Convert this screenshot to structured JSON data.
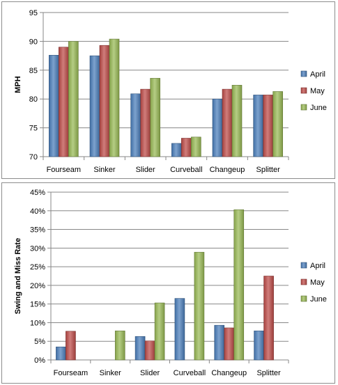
{
  "colors": {
    "April": "#4a7ebb",
    "May": "#be4b48",
    "June": "#98b954",
    "grid": "#878787",
    "axis": "#878787"
  },
  "chart_data": [
    {
      "type": "bar",
      "categories": [
        "Fourseam",
        "Sinker",
        "Slider",
        "Curveball",
        "Changeup",
        "Splitter"
      ],
      "series": [
        {
          "name": "April",
          "values": [
            87.6,
            87.5,
            80.9,
            72.3,
            80.0,
            80.7
          ]
        },
        {
          "name": "May",
          "values": [
            89.0,
            89.3,
            81.7,
            73.2,
            81.7,
            80.7
          ]
        },
        {
          "name": "June",
          "values": [
            90.0,
            90.4,
            83.6,
            73.4,
            82.4,
            81.3
          ]
        }
      ],
      "title": "",
      "xlabel": "",
      "ylabel": "MPH",
      "ylim": [
        70,
        95
      ],
      "yticks": [
        70,
        75,
        80,
        85,
        90,
        95
      ],
      "ytick_labels": [
        "70",
        "75",
        "80",
        "85",
        "90",
        "95"
      ],
      "grid": true,
      "legend": "right"
    },
    {
      "type": "bar",
      "categories": [
        "Fourseam",
        "Sinker",
        "Slider",
        "Curveball",
        "Changeup",
        "Splitter"
      ],
      "series": [
        {
          "name": "April",
          "values": [
            3.5,
            0,
            6.3,
            16.5,
            9.3,
            7.8
          ]
        },
        {
          "name": "May",
          "values": [
            7.7,
            0,
            5.1,
            0,
            8.6,
            22.5
          ]
        },
        {
          "name": "June",
          "values": [
            0,
            7.8,
            15.3,
            28.9,
            40.3,
            0
          ]
        }
      ],
      "title": "",
      "xlabel": "",
      "ylabel": "Swing and Miss Rate",
      "ylim": [
        0,
        45
      ],
      "yticks": [
        0,
        5,
        10,
        15,
        20,
        25,
        30,
        35,
        40,
        45
      ],
      "ytick_labels": [
        "0%",
        "5%",
        "10%",
        "15%",
        "20%",
        "25%",
        "30%",
        "35%",
        "40%",
        "45%"
      ],
      "grid": true,
      "legend": "right"
    }
  ]
}
